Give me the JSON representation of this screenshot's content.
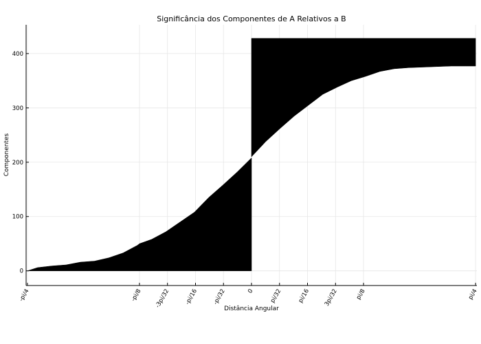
{
  "chart_data": {
    "type": "area",
    "title": "Significância dos Componentes de A Relativos a B",
    "xlabel": "Distância Angular",
    "ylabel": "Componentes",
    "x_ticks": [
      {
        "label": "-pi/4",
        "value": -0.7854
      },
      {
        "label": "-pi/8",
        "value": -0.3927
      },
      {
        "label": "-3pi/32",
        "value": -0.2945
      },
      {
        "label": "-pi/16",
        "value": -0.1963
      },
      {
        "label": "-pi/32",
        "value": -0.0982
      },
      {
        "label": "0",
        "value": 0
      },
      {
        "label": "pi/32",
        "value": 0.0982
      },
      {
        "label": "pi/16",
        "value": 0.1963
      },
      {
        "label": "3pi/32",
        "value": 0.2945
      },
      {
        "label": "pi/8",
        "value": 0.3927
      },
      {
        "label": "pi/4",
        "value": 0.7854
      }
    ],
    "y_ticks": [
      0,
      100,
      200,
      300,
      400
    ],
    "xlim": [
      -0.79,
      0.79
    ],
    "ylim": [
      -27,
      453
    ],
    "grid": true,
    "fill_color": "#000000",
    "series": [
      {
        "region": "negative",
        "baseline": 0,
        "x": [
          -0.7854,
          -0.75,
          -0.7,
          -0.65,
          -0.6,
          -0.55,
          -0.5,
          -0.45,
          -0.4,
          -0.3927,
          -0.35,
          -0.3,
          -0.25,
          -0.2,
          -0.15,
          -0.1,
          -0.05,
          0
        ],
        "y": [
          0,
          6,
          9,
          11,
          16,
          18,
          24,
          33,
          47,
          50,
          58,
          72,
          90,
          108,
          135,
          158,
          182,
          208
        ]
      },
      {
        "region": "positive",
        "baseline": 428,
        "x": [
          0,
          0.05,
          0.1,
          0.15,
          0.2,
          0.25,
          0.3,
          0.35,
          0.4,
          0.45,
          0.5,
          0.55,
          0.6,
          0.65,
          0.7,
          0.75,
          0.7854
        ],
        "y": [
          210,
          238,
          262,
          285,
          305,
          325,
          338,
          350,
          358,
          367,
          372,
          374,
          375,
          376,
          377,
          377,
          377
        ]
      }
    ]
  }
}
